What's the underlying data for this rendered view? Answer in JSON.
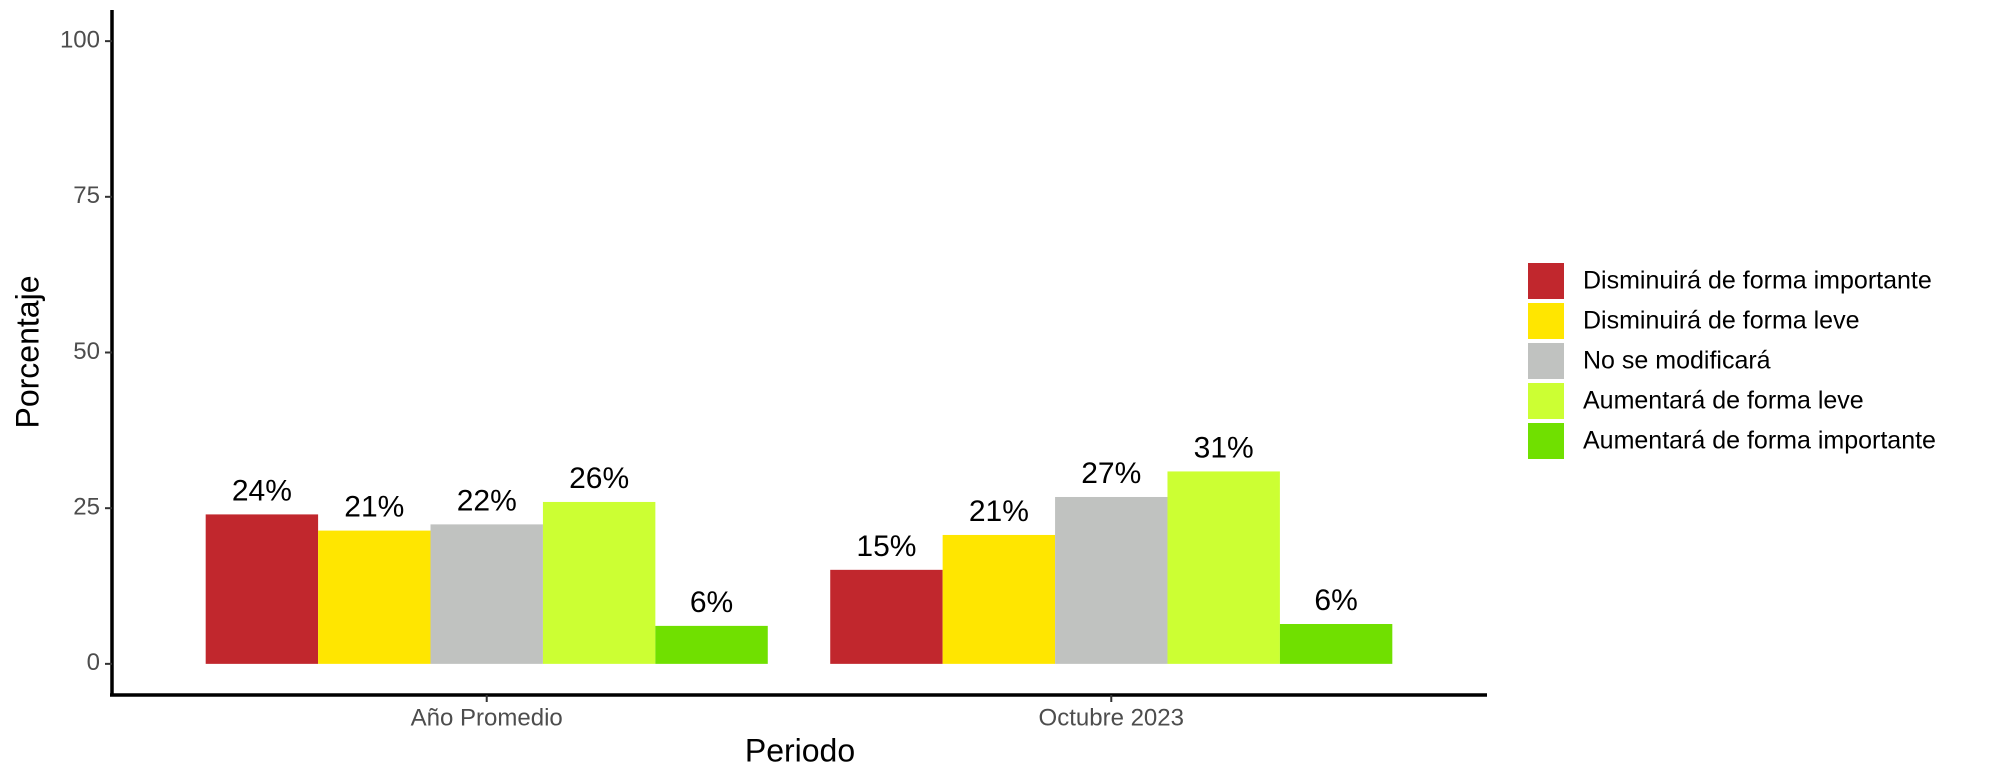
{
  "chart_data": {
    "type": "bar",
    "x_label": "Periodo",
    "y_label": "Porcentaje",
    "categories": [
      "Año Promedio",
      "Octubre 2023"
    ],
    "series": [
      {
        "name": "Disminuirá de forma importante",
        "color": "#c1272d",
        "values": [
          24,
          15.1
        ],
        "value_labels": [
          "24%",
          "15%"
        ]
      },
      {
        "name": "Disminuirá de forma leve",
        "color": "#ffe600",
        "values": [
          21.4,
          20.7
        ],
        "value_labels": [
          "21%",
          "21%"
        ]
      },
      {
        "name": "No se modificará",
        "color": "#c0c2c0",
        "values": [
          22.4,
          26.8
        ],
        "value_labels": [
          "22%",
          "27%"
        ]
      },
      {
        "name": "Aumentará de forma leve",
        "color": "#ccff33",
        "values": [
          26,
          30.9
        ],
        "value_labels": [
          "26%",
          "31%"
        ]
      },
      {
        "name": "Aumentará de forma importante",
        "color": "#70e000",
        "values": [
          6.1,
          6.4
        ],
        "value_labels": [
          "6%",
          "6%"
        ]
      }
    ],
    "ylim": [
      -5,
      105
    ],
    "yticks": [
      0,
      25,
      50,
      75,
      100
    ],
    "grid": false,
    "legend": "right"
  }
}
